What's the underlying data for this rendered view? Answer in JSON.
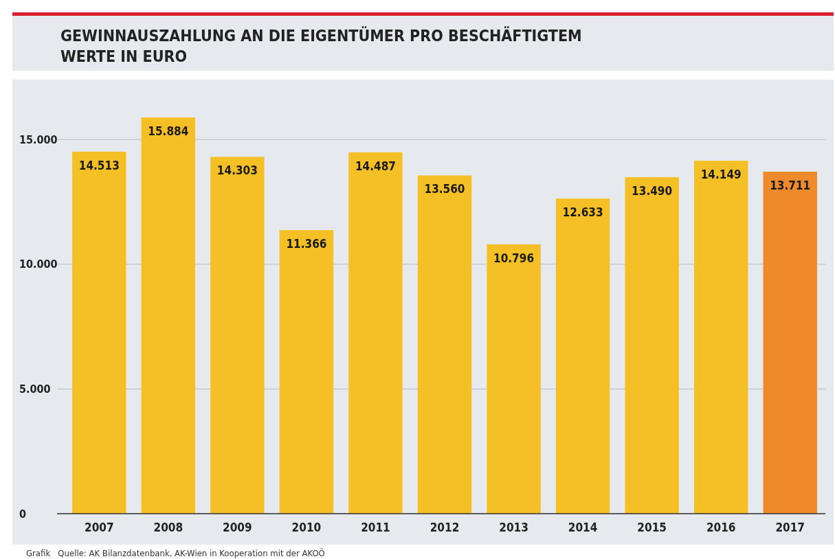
{
  "chart_data": {
    "type": "bar",
    "title": "GEWINNAUSZAHLUNG AN DIE EIGENTÜMER PRO BESCHÄFTIGTEM",
    "subtitle": "WERTE IN EURO",
    "categories": [
      "2007",
      "2008",
      "2009",
      "2010",
      "2011",
      "2012",
      "2013",
      "2014",
      "2015",
      "2016",
      "2017"
    ],
    "values": [
      14513,
      15884,
      14303,
      11366,
      14487,
      13560,
      10796,
      12633,
      13490,
      14149,
      13711
    ],
    "colors": [
      "#f4c025",
      "#f4c025",
      "#f4c025",
      "#f4c025",
      "#f4c025",
      "#f4c025",
      "#f4c025",
      "#f4c025",
      "#f4c025",
      "#f4c025",
      "#ef8a2c"
    ],
    "ylim": [
      0,
      17400
    ],
    "yticks": [
      {
        "value": 0,
        "label": "0"
      },
      {
        "value": 5000,
        "label": "5.000"
      },
      {
        "value": 10000,
        "label": "10.000"
      },
      {
        "value": 15000,
        "label": "15.000"
      }
    ],
    "grid": "y",
    "value_labels": [
      "14.513",
      "15.884",
      "14.303",
      "11.366",
      "14.487",
      "13.560",
      "10.796",
      "12.633",
      "13.490",
      "14.149",
      "13.711"
    ],
    "annotations": [
      "Grafik   Quelle: AK Bilanzdatenbank, AK-Wien in Kooperation mit der AKOÖ"
    ]
  }
}
